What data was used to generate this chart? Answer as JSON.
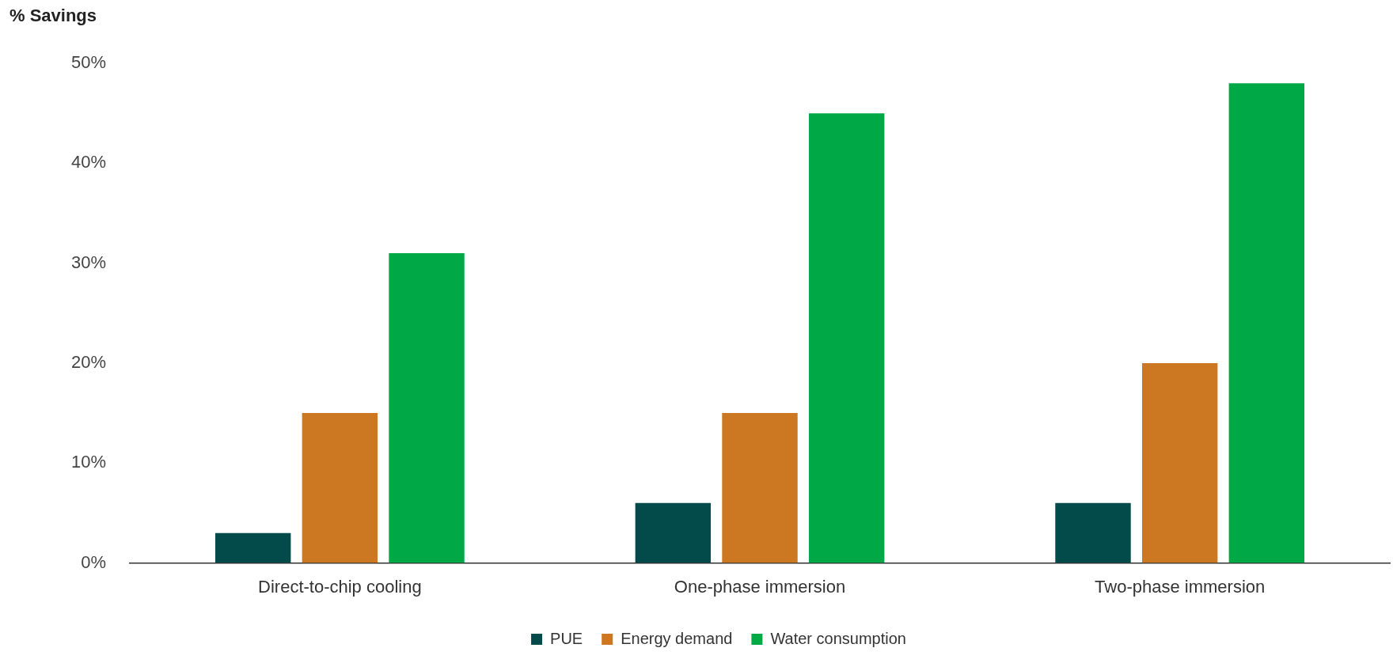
{
  "chart_data": {
    "type": "bar",
    "ylabel": "% Savings",
    "categories": [
      "Direct-to-chip cooling",
      "One-phase immersion",
      "Two-phase immersion"
    ],
    "series": [
      {
        "name": "PUE",
        "color": "#024b4a",
        "values": [
          3,
          6,
          6
        ]
      },
      {
        "name": "Energy demand",
        "color": "#cc7722",
        "values": [
          15,
          15,
          20
        ]
      },
      {
        "name": "Water consumption",
        "color": "#00a846",
        "values": [
          31,
          45,
          48
        ]
      }
    ],
    "ylim": [
      0,
      50
    ],
    "yticks": [
      {
        "value": 0,
        "label": "0%"
      },
      {
        "value": 10,
        "label": "10%"
      },
      {
        "value": 20,
        "label": "20%"
      },
      {
        "value": 30,
        "label": "30%"
      },
      {
        "value": 40,
        "label": "40%"
      },
      {
        "value": 50,
        "label": "50%"
      }
    ],
    "grid": false,
    "legend": "bottom"
  }
}
